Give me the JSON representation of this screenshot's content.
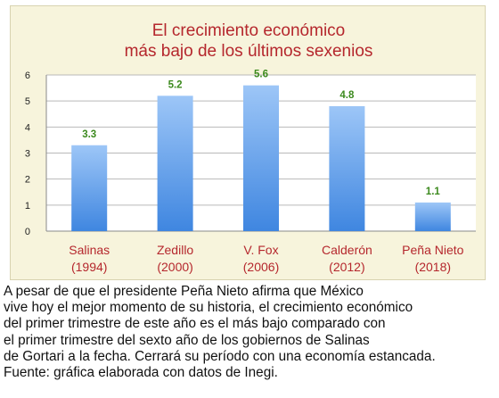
{
  "chart_data": {
    "type": "bar",
    "title": [
      "El crecimiento económico",
      "más bajo de los últimos sexenios"
    ],
    "categories": [
      [
        "Salinas",
        "(1994)"
      ],
      [
        "Zedillo",
        "(2000)"
      ],
      [
        "V.  Fox",
        "(2006)"
      ],
      [
        "Calderón",
        "(2012)"
      ],
      [
        "Peña Nieto",
        "(2018)"
      ]
    ],
    "values": [
      3.3,
      5.2,
      5.6,
      4.8,
      1.1
    ],
    "data_labels": [
      "3.3",
      "5.2",
      "5.6",
      "4.8",
      "1.1"
    ],
    "yticks": [
      "0",
      "1",
      "2",
      "3",
      "4",
      "5",
      "6"
    ],
    "ylim": [
      0,
      6
    ],
    "grid": true,
    "legend": false,
    "colors": {
      "title": "#b5272d",
      "category_label": "#b5272d",
      "data_label": "#3c8a1e",
      "bar_top": "#9dc6f7",
      "bar_bottom": "#3f86e0",
      "panel_bg": "#f7f4dc",
      "plot_bg": "#ffffff"
    }
  },
  "caption": {
    "lines": [
      "A pesar de que el presidente Peña Nieto afirma que México",
      "vive hoy el mejor momento de su historia, el crecimiento económico",
      "del primer trimestre de este año es el más bajo comparado con",
      "el primer trimestre del sexto año de los gobiernos de Salinas",
      "de Gortari a la fecha. Cerrará su período con una economía estancada.",
      "Fuente: gráfica elaborada con datos de Inegi."
    ]
  }
}
